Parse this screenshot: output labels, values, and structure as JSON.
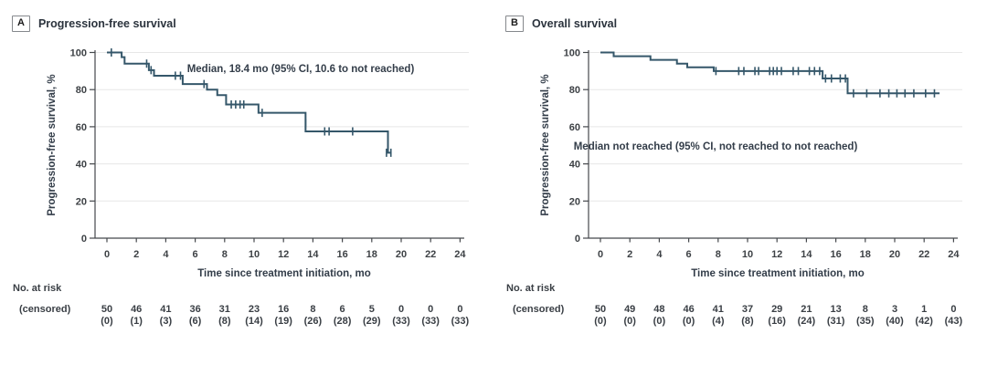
{
  "figure": {
    "panels": [
      {
        "letter": "A",
        "title": "Progression-free survival"
      },
      {
        "letter": "B",
        "title": "Overall survival"
      }
    ]
  },
  "chart_data": [
    {
      "type": "line",
      "subtype": "kaplan_meier_step",
      "panel": "A",
      "title": "Progression-free survival",
      "annotation": "Median, 18.4 mo (95% CI, 10.6 to not reached)",
      "annotation_pos": [
        329,
        37
      ],
      "xlabel": "Time since treatment initiation, mo",
      "ylabel": "Progression-free survival, %",
      "xlim": [
        0,
        24
      ],
      "ylim": [
        0,
        100
      ],
      "xticks": [
        0,
        2,
        4,
        6,
        8,
        10,
        12,
        14,
        16,
        18,
        20,
        22,
        24
      ],
      "yticks": [
        0,
        20,
        40,
        60,
        80,
        100
      ],
      "grid": "horizontal",
      "legend": "none",
      "line_color": "#35576a",
      "steps": [
        [
          0,
          100
        ],
        [
          1.0,
          97.5
        ],
        [
          1.2,
          94
        ],
        [
          2.85,
          90.5
        ],
        [
          3.2,
          87.5
        ],
        [
          5.15,
          83
        ],
        [
          6.8,
          80
        ],
        [
          7.5,
          77
        ],
        [
          8.1,
          72
        ],
        [
          10.3,
          67.5
        ],
        [
          13.5,
          57.5
        ],
        [
          19.1,
          46
        ]
      ],
      "end_time": 19.35,
      "censor_marks": [
        [
          0.3,
          100
        ],
        [
          2.7,
          94
        ],
        [
          3.0,
          90.5
        ],
        [
          4.65,
          87.5
        ],
        [
          5.0,
          87.5
        ],
        [
          6.6,
          83
        ],
        [
          8.45,
          72
        ],
        [
          8.75,
          72
        ],
        [
          9.05,
          72
        ],
        [
          9.3,
          72
        ],
        [
          10.55,
          67.5
        ],
        [
          13.5,
          62
        ],
        [
          14.8,
          57.5
        ],
        [
          15.1,
          57.5
        ],
        [
          16.7,
          57.5
        ],
        [
          19.0,
          46
        ],
        [
          19.3,
          46
        ]
      ],
      "risk_header": "No. at risk",
      "risk_subheader": "(censored)",
      "risk_times": [
        0,
        2,
        4,
        6,
        8,
        10,
        12,
        14,
        16,
        18,
        20,
        22,
        24
      ],
      "at_risk": [
        50,
        46,
        41,
        36,
        31,
        23,
        16,
        8,
        6,
        5,
        0,
        0,
        0
      ],
      "censored": [
        0,
        1,
        3,
        6,
        8,
        14,
        19,
        26,
        28,
        29,
        33,
        33,
        33
      ]
    },
    {
      "type": "line",
      "subtype": "kaplan_meier_step",
      "panel": "B",
      "title": "Overall survival",
      "annotation": "Median not reached (95% CI, not reached to not reached)",
      "annotation_pos": [
        243,
        122
      ],
      "xlabel": "Time since treatment initiation, mo",
      "ylabel": "Progression-free survival, %",
      "xlim": [
        0,
        24
      ],
      "ylim": [
        0,
        100
      ],
      "xticks": [
        0,
        2,
        4,
        6,
        8,
        10,
        12,
        14,
        16,
        18,
        20,
        22,
        24
      ],
      "yticks": [
        0,
        20,
        40,
        60,
        80,
        100
      ],
      "grid": "horizontal",
      "legend": "none",
      "line_color": "#35576a",
      "steps": [
        [
          0,
          100
        ],
        [
          0.9,
          98
        ],
        [
          3.4,
          96
        ],
        [
          5.2,
          94
        ],
        [
          5.9,
          92
        ],
        [
          7.7,
          90
        ],
        [
          15.1,
          86
        ],
        [
          16.8,
          78
        ]
      ],
      "end_time": 23.05,
      "censor_marks": [
        [
          7.85,
          90
        ],
        [
          9.4,
          90
        ],
        [
          9.75,
          90
        ],
        [
          10.5,
          90
        ],
        [
          10.75,
          90
        ],
        [
          11.5,
          90
        ],
        [
          11.75,
          90
        ],
        [
          12.0,
          90
        ],
        [
          12.3,
          90
        ],
        [
          13.1,
          90
        ],
        [
          13.45,
          90
        ],
        [
          14.2,
          90
        ],
        [
          14.55,
          90
        ],
        [
          14.9,
          90
        ],
        [
          15.3,
          86
        ],
        [
          15.7,
          86
        ],
        [
          16.3,
          86
        ],
        [
          16.65,
          86
        ],
        [
          17.2,
          78
        ],
        [
          18.1,
          78
        ],
        [
          19.0,
          78
        ],
        [
          19.6,
          78
        ],
        [
          20.15,
          78
        ],
        [
          20.7,
          78
        ],
        [
          21.3,
          78
        ],
        [
          22.1,
          78
        ],
        [
          22.7,
          78
        ]
      ],
      "risk_header": "No. at risk",
      "risk_subheader": "(censored)",
      "risk_times": [
        0,
        2,
        4,
        6,
        8,
        10,
        12,
        14,
        16,
        18,
        20,
        22,
        24
      ],
      "at_risk": [
        50,
        49,
        48,
        46,
        41,
        37,
        29,
        21,
        13,
        8,
        3,
        1,
        0
      ],
      "censored": [
        0,
        0,
        0,
        0,
        4,
        8,
        16,
        24,
        31,
        35,
        40,
        42,
        43
      ]
    }
  ]
}
